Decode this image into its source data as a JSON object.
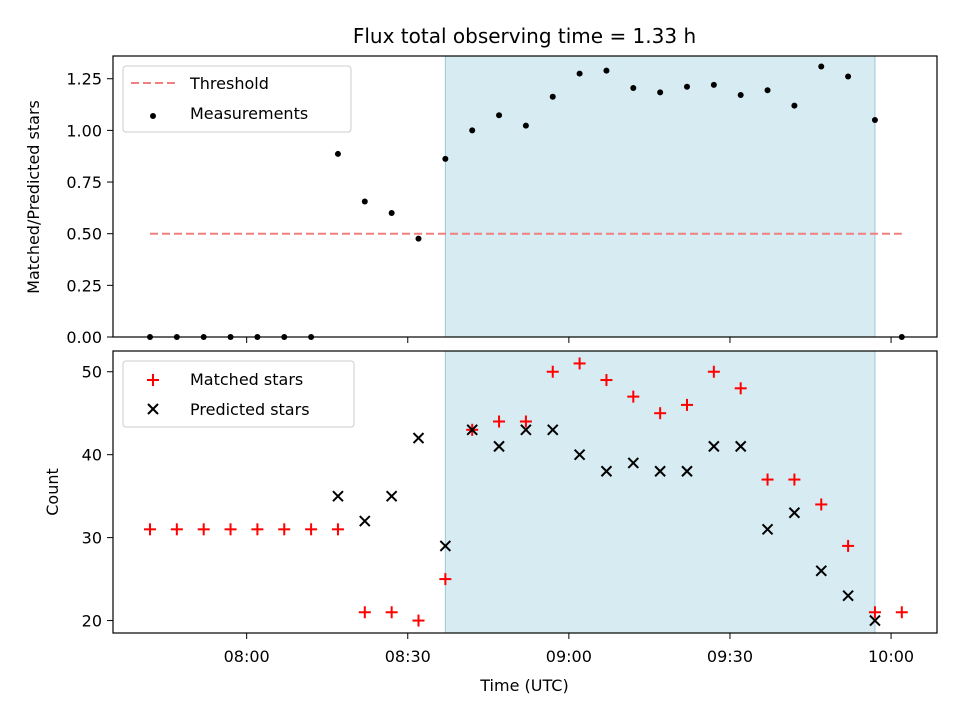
{
  "chart_data": [
    {
      "type": "scatter",
      "title": "Flux total observing time = 1.33 h",
      "xlabel": "",
      "ylabel": "Matched/Predicted stars",
      "ylim": [
        0,
        1.36
      ],
      "yticks": [
        "0.00",
        "0.25",
        "0.50",
        "0.75",
        "1.00",
        "1.25"
      ],
      "x_times": [
        "07:42",
        "07:47",
        "07:52",
        "07:57",
        "08:02",
        "08:07",
        "08:12",
        "08:17",
        "08:22",
        "08:27",
        "08:32",
        "08:37",
        "08:42",
        "08:47",
        "08:52",
        "08:57",
        "09:02",
        "09:07",
        "09:12",
        "09:17",
        "09:22",
        "09:27",
        "09:32",
        "09:37",
        "09:42",
        "09:47",
        "09:52",
        "09:57",
        "10:02"
      ],
      "shaded_span": [
        "08:37",
        "09:57"
      ],
      "series": [
        {
          "name": "Threshold",
          "kind": "line",
          "color": "#f08080",
          "style": "dashed",
          "x": [
            "07:42",
            "10:02"
          ],
          "values": [
            0.5,
            0.5
          ]
        },
        {
          "name": "Measurements",
          "kind": "dot",
          "color": "#000000",
          "values": [
            0.0,
            0.0,
            0.0,
            0.0,
            0.0,
            0.0,
            0.0,
            0.886,
            0.656,
            0.6,
            0.476,
            0.862,
            1.0,
            1.073,
            1.023,
            1.163,
            1.275,
            1.289,
            1.205,
            1.184,
            1.211,
            1.22,
            1.171,
            1.194,
            1.12,
            1.309,
            1.261,
            1.05,
            0.0
          ]
        }
      ],
      "legend": "top-left",
      "grid": false
    },
    {
      "type": "scatter",
      "title": "",
      "xlabel": "Time (UTC)",
      "ylabel": "Count",
      "ylim": [
        18.5,
        52.5
      ],
      "yticks": [
        "20",
        "30",
        "40",
        "50"
      ],
      "xticks": [
        "08:00",
        "08:30",
        "09:00",
        "09:30",
        "10:00"
      ],
      "x_times": [
        "07:42",
        "07:47",
        "07:52",
        "07:57",
        "08:02",
        "08:07",
        "08:12",
        "08:17",
        "08:22",
        "08:27",
        "08:32",
        "08:37",
        "08:42",
        "08:47",
        "08:52",
        "08:57",
        "09:02",
        "09:07",
        "09:12",
        "09:17",
        "09:22",
        "09:27",
        "09:32",
        "09:37",
        "09:42",
        "09:47",
        "09:52",
        "09:57",
        "10:02"
      ],
      "shaded_span": [
        "08:37",
        "09:57"
      ],
      "series": [
        {
          "name": "Matched stars",
          "marker": "plus",
          "color": "#ff0000",
          "values": [
            31,
            31,
            31,
            31,
            31,
            31,
            31,
            31,
            21,
            21,
            20,
            25,
            43,
            44,
            44,
            50,
            51,
            49,
            47,
            45,
            46,
            50,
            48,
            37,
            37,
            34,
            29,
            21,
            21
          ]
        },
        {
          "name": "Predicted stars",
          "marker": "x",
          "color": "#000000",
          "x": [
            "08:17",
            "08:22",
            "08:27",
            "08:32",
            "08:37",
            "08:42",
            "08:47",
            "08:52",
            "08:57",
            "09:02",
            "09:07",
            "09:12",
            "09:17",
            "09:22",
            "09:27",
            "09:32",
            "09:37",
            "09:42",
            "09:47",
            "09:52",
            "09:57"
          ],
          "values": [
            35,
            32,
            35,
            42,
            29,
            43,
            41,
            43,
            43,
            40,
            38,
            39,
            38,
            38,
            41,
            41,
            31,
            33,
            26,
            23,
            20
          ]
        }
      ],
      "legend": "top-left",
      "grid": false
    }
  ],
  "colors": {
    "shade": "#add8e6",
    "threshold": "#f08080",
    "matched": "#ff0000",
    "predicted": "#000000"
  }
}
